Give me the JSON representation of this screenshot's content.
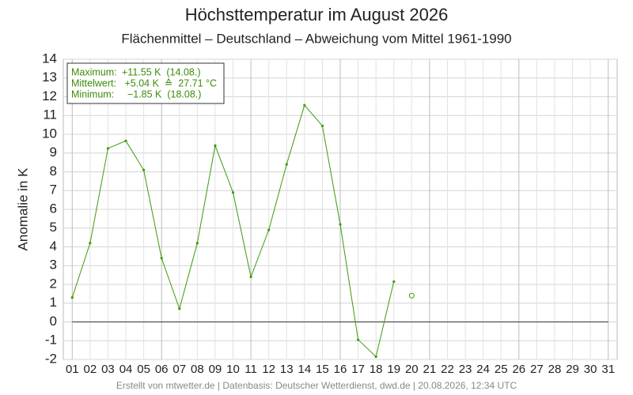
{
  "chart_data": {
    "type": "line",
    "title": "Höchsttemperatur im August 2026",
    "subtitle": "Flächenmittel – Deutschland – Abweichung vom Mittel 1961-1990",
    "y_label": "Anomalie in K",
    "footer": "Erstellt von mtwetter.de | Datenbasis: Deutscher Wetterdienst, dwd.de | 20.08.2026, 12:34 UTC",
    "info_box": [
      [
        "Maximum:",
        "+11.55 K  (14.08.)"
      ],
      [
        "Mittelwert:",
        " +5.04 K  ≙  27.71 °C"
      ],
      [
        "Minimum:",
        "  −1.85 K  (18.08.)"
      ]
    ],
    "categories": [
      "01",
      "02",
      "03",
      "04",
      "05",
      "06",
      "07",
      "08",
      "09",
      "10",
      "11",
      "12",
      "13",
      "14",
      "15",
      "16",
      "17",
      "18",
      "19",
      "20",
      "21",
      "22",
      "23",
      "24",
      "25",
      "26",
      "27",
      "28",
      "29",
      "30",
      "31"
    ],
    "series": [
      {
        "color": "#3c9a0a",
        "marker": "dot",
        "values": [
          1.3,
          4.2,
          9.25,
          9.65,
          8.1,
          3.4,
          0.7,
          4.2,
          9.4,
          6.9,
          2.4,
          4.9,
          8.4,
          11.55,
          10.45,
          5.2,
          -0.95,
          -1.85,
          2.15,
          null,
          null,
          null,
          null,
          null,
          null,
          null,
          null,
          null,
          null,
          null,
          null
        ]
      },
      {
        "color": "#3c9a0a",
        "marker": "open-circle",
        "values": [
          null,
          null,
          null,
          null,
          null,
          null,
          null,
          null,
          null,
          null,
          null,
          null,
          null,
          null,
          null,
          null,
          null,
          null,
          null,
          1.4,
          null,
          null,
          null,
          null,
          null,
          null,
          null,
          null,
          null,
          null,
          null
        ]
      }
    ],
    "ylim": [
      -2,
      14
    ],
    "yticks": [
      -2,
      -1,
      0,
      1,
      2,
      3,
      4,
      5,
      6,
      7,
      8,
      9,
      10,
      11,
      12,
      13,
      14
    ],
    "grid": true,
    "zero_line": true
  }
}
